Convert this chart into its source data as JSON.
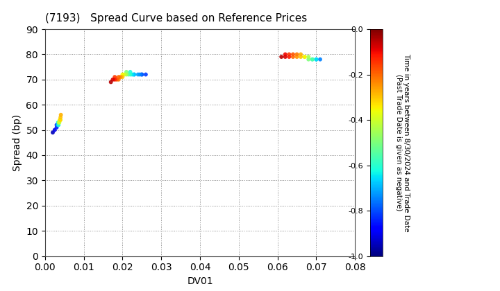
{
  "title": "(7193)   Spread Curve based on Reference Prices",
  "xlabel": "DV01",
  "ylabel": "Spread (bp)",
  "xlim": [
    0.0,
    0.08
  ],
  "ylim": [
    0,
    90
  ],
  "xticks": [
    0.0,
    0.01,
    0.02,
    0.03,
    0.04,
    0.05,
    0.06,
    0.07,
    0.08
  ],
  "yticks": [
    0,
    10,
    20,
    30,
    40,
    50,
    60,
    70,
    80,
    90
  ],
  "colorbar_label_line1": "Time in years between 8/30/2024 and Trade Date",
  "colorbar_label_line2": "(Past Trade Date is given as negative)",
  "colorbar_vmin": -1.0,
  "colorbar_vmax": 0.0,
  "colorbar_ticks": [
    0.0,
    -0.2,
    -0.4,
    -0.6,
    -0.8,
    -1.0
  ],
  "background_color": "#ffffff",
  "grid_color": "#888888",
  "marker_size": 18,
  "cmap": "jet",
  "cluster1": {
    "x_vals": [
      0.002,
      0.0025,
      0.003,
      0.003,
      0.0032,
      0.0033,
      0.0034,
      0.0034,
      0.0035,
      0.0035,
      0.0036,
      0.0036,
      0.0037,
      0.0038,
      0.0039,
      0.004,
      0.004,
      0.0041
    ],
    "y_vals": [
      49,
      50,
      51,
      52,
      52,
      52,
      52,
      53,
      52,
      53,
      53,
      53,
      53,
      54,
      54,
      54,
      55,
      56
    ],
    "c_vals": [
      -0.95,
      -0.9,
      -0.85,
      -0.82,
      -0.78,
      -0.75,
      -0.7,
      -0.65,
      -0.6,
      -0.55,
      -0.5,
      -0.45,
      -0.4,
      -0.38,
      -0.35,
      -0.32,
      -0.3,
      -0.28
    ]
  },
  "cluster2": {
    "x_vals": [
      0.017,
      0.0175,
      0.018,
      0.018,
      0.0185,
      0.019,
      0.019,
      0.0195,
      0.02,
      0.02,
      0.0205,
      0.021,
      0.021,
      0.0215,
      0.022,
      0.022,
      0.0225,
      0.023,
      0.023,
      0.024,
      0.0245,
      0.025,
      0.025,
      0.026
    ],
    "y_vals": [
      69,
      70,
      70,
      71,
      70,
      71,
      70,
      71,
      71,
      72,
      72,
      72,
      73,
      72,
      72,
      73,
      72,
      72,
      72,
      72,
      72,
      72,
      72,
      72
    ],
    "c_vals": [
      -0.05,
      -0.08,
      -0.12,
      -0.15,
      -0.18,
      -0.2,
      -0.22,
      -0.25,
      -0.3,
      -0.35,
      -0.4,
      -0.45,
      -0.5,
      -0.55,
      -0.6,
      -0.62,
      -0.65,
      -0.68,
      -0.7,
      -0.72,
      -0.75,
      -0.78,
      -0.8,
      -0.82
    ]
  },
  "cluster3": {
    "x_vals": [
      0.061,
      0.062,
      0.062,
      0.063,
      0.063,
      0.064,
      0.064,
      0.065,
      0.065,
      0.066,
      0.066,
      0.067,
      0.067,
      0.068,
      0.068,
      0.069,
      0.069,
      0.07,
      0.07,
      0.071
    ],
    "y_vals": [
      79,
      79,
      80,
      79,
      80,
      80,
      79,
      80,
      79,
      80,
      79,
      79,
      79,
      79,
      78,
      78,
      78,
      78,
      78,
      78
    ],
    "c_vals": [
      -0.05,
      -0.08,
      -0.1,
      -0.12,
      -0.15,
      -0.18,
      -0.2,
      -0.22,
      -0.25,
      -0.28,
      -0.3,
      -0.35,
      -0.4,
      -0.45,
      -0.5,
      -0.55,
      -0.6,
      -0.65,
      -0.7,
      -0.75
    ]
  }
}
